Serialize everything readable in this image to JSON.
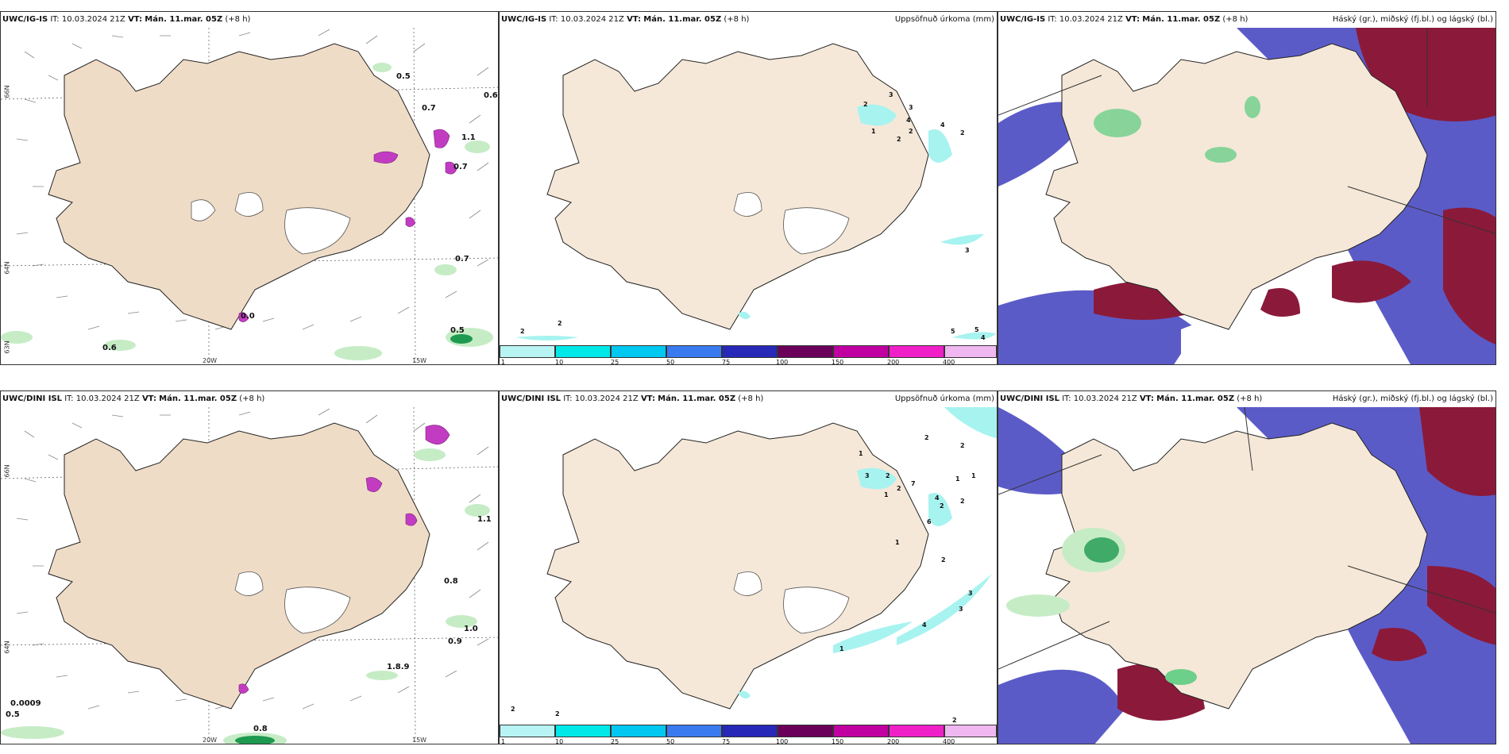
{
  "colors": {
    "land": "#f5e8d8",
    "land_warm": "#efdcc7",
    "sea": "#ffffff",
    "coast": "#222222",
    "precip_light": "#a7f3f0",
    "precip_cyan": "#00e6e6",
    "green_light": "#c6ecc6",
    "green_mid": "#6ccf8a",
    "green_dark": "#1e9a50",
    "magenta": "#c23cc2",
    "cloud_blue": "#5b5bc8",
    "cloud_red": "#8b1a3a",
    "cloud_light": "#a8c8f0"
  },
  "rows": [
    {
      "model": "UWC/IG-IS",
      "it_label": "IT:",
      "it_value": "10.03.2024 21Z",
      "vt_label": "VT:",
      "vt_value": "Mán. 11.mar. 05Z",
      "lead": "(+8 h)",
      "panels": [
        {
          "title_right": "",
          "lat_labels": [
            "66N",
            "64N",
            "63N"
          ],
          "lon_labels": [
            "20W",
            "15W"
          ],
          "values": [
            "0.5",
            "0.7",
            "0.6",
            "1.1",
            "0.7",
            "0.7",
            "0.6",
            "0.5",
            "0.0"
          ]
        },
        {
          "title_right": "Uppsöfnuð úrkoma (mm)",
          "values": [
            "2",
            "3",
            "1",
            "2",
            "2",
            "4",
            "3",
            "4",
            "2",
            "5",
            "3",
            "2",
            "2",
            "5",
            "4"
          ]
        },
        {
          "title_right": "Háský (gr.), miðský (fj.bl.) og lágský (bl.)"
        }
      ]
    },
    {
      "model": "UWC/DINI ISL",
      "it_label": "IT:",
      "it_value": "10.03.2024 21Z",
      "vt_label": "VT:",
      "vt_value": "Mán. 11.mar. 05Z",
      "lead": "(+8 h)",
      "panels": [
        {
          "title_right": "",
          "lat_labels": [
            "66N",
            "64N"
          ],
          "lon_labels": [
            "20W",
            "15W"
          ],
          "values": [
            "1.1",
            "0.8",
            "1.0",
            "0.9",
            "1.8.9",
            "0.5",
            "0.8",
            "0.0009"
          ]
        },
        {
          "title_right": "Uppsöfnuð úrkoma (mm)",
          "values": [
            "1",
            "2",
            "2",
            "3",
            "2",
            "7",
            "1",
            "1",
            "4",
            "2",
            "1",
            "2",
            "6",
            "2",
            "1",
            "2",
            "3",
            "3",
            "4",
            "1",
            "2",
            "2",
            "2"
          ]
        },
        {
          "title_right": "Háský (gr.), miðský (fj.bl.) og lágský (bl.)"
        }
      ]
    }
  ],
  "colorbar": {
    "ticks": [
      "1",
      "10",
      "25",
      "50",
      "75",
      "100",
      "150",
      "200",
      "400"
    ],
    "colors": [
      "#b8f4f4",
      "#00e8e8",
      "#00c8f0",
      "#3a7af0",
      "#2828b8",
      "#6a005a",
      "#c000a0",
      "#f020c8",
      "#f0b8f0"
    ]
  }
}
